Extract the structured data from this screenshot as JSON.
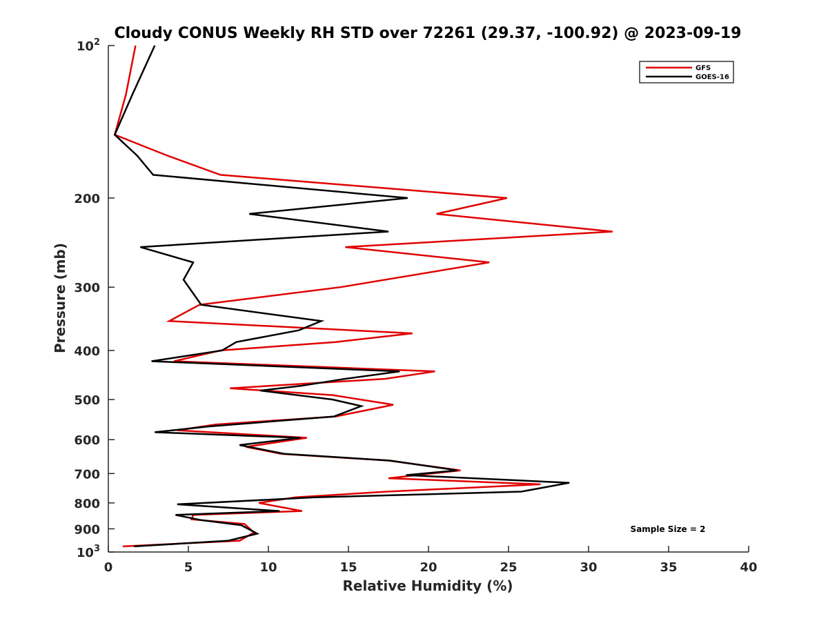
{
  "chart_data": {
    "type": "line",
    "title": "Cloudy CONUS Weekly RH STD over 72261 (29.37, -100.92) @ 2023-09-19",
    "xlabel": "Relative Humidity (%)",
    "ylabel": "Pressure (mb)",
    "xlim": [
      0,
      40
    ],
    "ylim": [
      100,
      1000
    ],
    "y_scale": "log",
    "y_reversed": true,
    "grid": false,
    "x_ticks": [
      "0",
      "5",
      "10",
      "15",
      "20",
      "25",
      "30",
      "35",
      "40"
    ],
    "y_ticks": [
      {
        "value": 100,
        "base": "10",
        "exp": "2"
      },
      {
        "value": 200,
        "label": "200"
      },
      {
        "value": 300,
        "label": "300"
      },
      {
        "value": 400,
        "label": "400"
      },
      {
        "value": 500,
        "label": "500"
      },
      {
        "value": 600,
        "label": "600"
      },
      {
        "value": 700,
        "label": "700"
      },
      {
        "value": 800,
        "label": "800"
      },
      {
        "value": 900,
        "label": "900"
      },
      {
        "value": 1000,
        "base": "10",
        "exp": "3"
      }
    ],
    "legend_position": "top-right",
    "annotation": "Sample Size = 2",
    "series": [
      {
        "name": "GFS",
        "color": "#e00000",
        "points": [
          [
            1.7,
            100
          ],
          [
            1.1,
            125
          ],
          [
            0.4,
            150
          ],
          [
            3.7,
            165
          ],
          [
            7.0,
            180
          ],
          [
            24.9,
            200
          ],
          [
            20.5,
            215
          ],
          [
            31.5,
            233
          ],
          [
            14.8,
            250
          ],
          [
            23.8,
            268
          ],
          [
            14.5,
            300
          ],
          [
            5.7,
            325
          ],
          [
            3.8,
            350
          ],
          [
            19.0,
            370
          ],
          [
            14.2,
            385
          ],
          [
            7.0,
            400
          ],
          [
            4.1,
            420
          ],
          [
            20.4,
            440
          ],
          [
            17.3,
            455
          ],
          [
            7.6,
            475
          ],
          [
            14.0,
            490
          ],
          [
            17.8,
            512
          ],
          [
            14.2,
            540
          ],
          [
            6.7,
            560
          ],
          [
            4.3,
            575
          ],
          [
            12.4,
            595
          ],
          [
            8.6,
            620
          ],
          [
            10.8,
            640
          ],
          [
            17.5,
            660
          ],
          [
            22.0,
            690
          ],
          [
            17.5,
            715
          ],
          [
            27.0,
            735
          ],
          [
            17.4,
            760
          ],
          [
            11.7,
            780
          ],
          [
            9.4,
            800
          ],
          [
            12.1,
            830
          ],
          [
            5.3,
            845
          ],
          [
            5.2,
            862
          ],
          [
            8.5,
            880
          ],
          [
            9.1,
            915
          ],
          [
            8.2,
            950
          ],
          [
            0.9,
            975
          ]
        ]
      },
      {
        "name": "GOES-16",
        "color": "#000000",
        "points": [
          [
            2.9,
            100
          ],
          [
            1.5,
            125
          ],
          [
            0.4,
            150
          ],
          [
            1.8,
            165
          ],
          [
            2.8,
            180
          ],
          [
            18.7,
            200
          ],
          [
            8.8,
            215
          ],
          [
            17.5,
            233
          ],
          [
            2.0,
            250
          ],
          [
            5.3,
            268
          ],
          [
            4.7,
            290
          ],
          [
            5.8,
            325
          ],
          [
            13.3,
            350
          ],
          [
            11.9,
            365
          ],
          [
            8.0,
            385
          ],
          [
            7.1,
            400
          ],
          [
            2.7,
            420
          ],
          [
            18.2,
            440
          ],
          [
            14.8,
            455
          ],
          [
            12.0,
            470
          ],
          [
            9.5,
            480
          ],
          [
            14.0,
            500
          ],
          [
            15.8,
            515
          ],
          [
            14.1,
            540
          ],
          [
            6.3,
            565
          ],
          [
            2.9,
            580
          ],
          [
            12.0,
            595
          ],
          [
            8.2,
            615
          ],
          [
            11.0,
            640
          ],
          [
            17.6,
            660
          ],
          [
            21.8,
            690
          ],
          [
            18.6,
            705
          ],
          [
            28.8,
            730
          ],
          [
            25.8,
            760
          ],
          [
            12.9,
            780
          ],
          [
            4.3,
            805
          ],
          [
            10.7,
            830
          ],
          [
            4.2,
            845
          ],
          [
            5.8,
            865
          ],
          [
            8.3,
            885
          ],
          [
            9.3,
            920
          ],
          [
            7.5,
            950
          ],
          [
            1.6,
            975
          ]
        ]
      }
    ]
  }
}
